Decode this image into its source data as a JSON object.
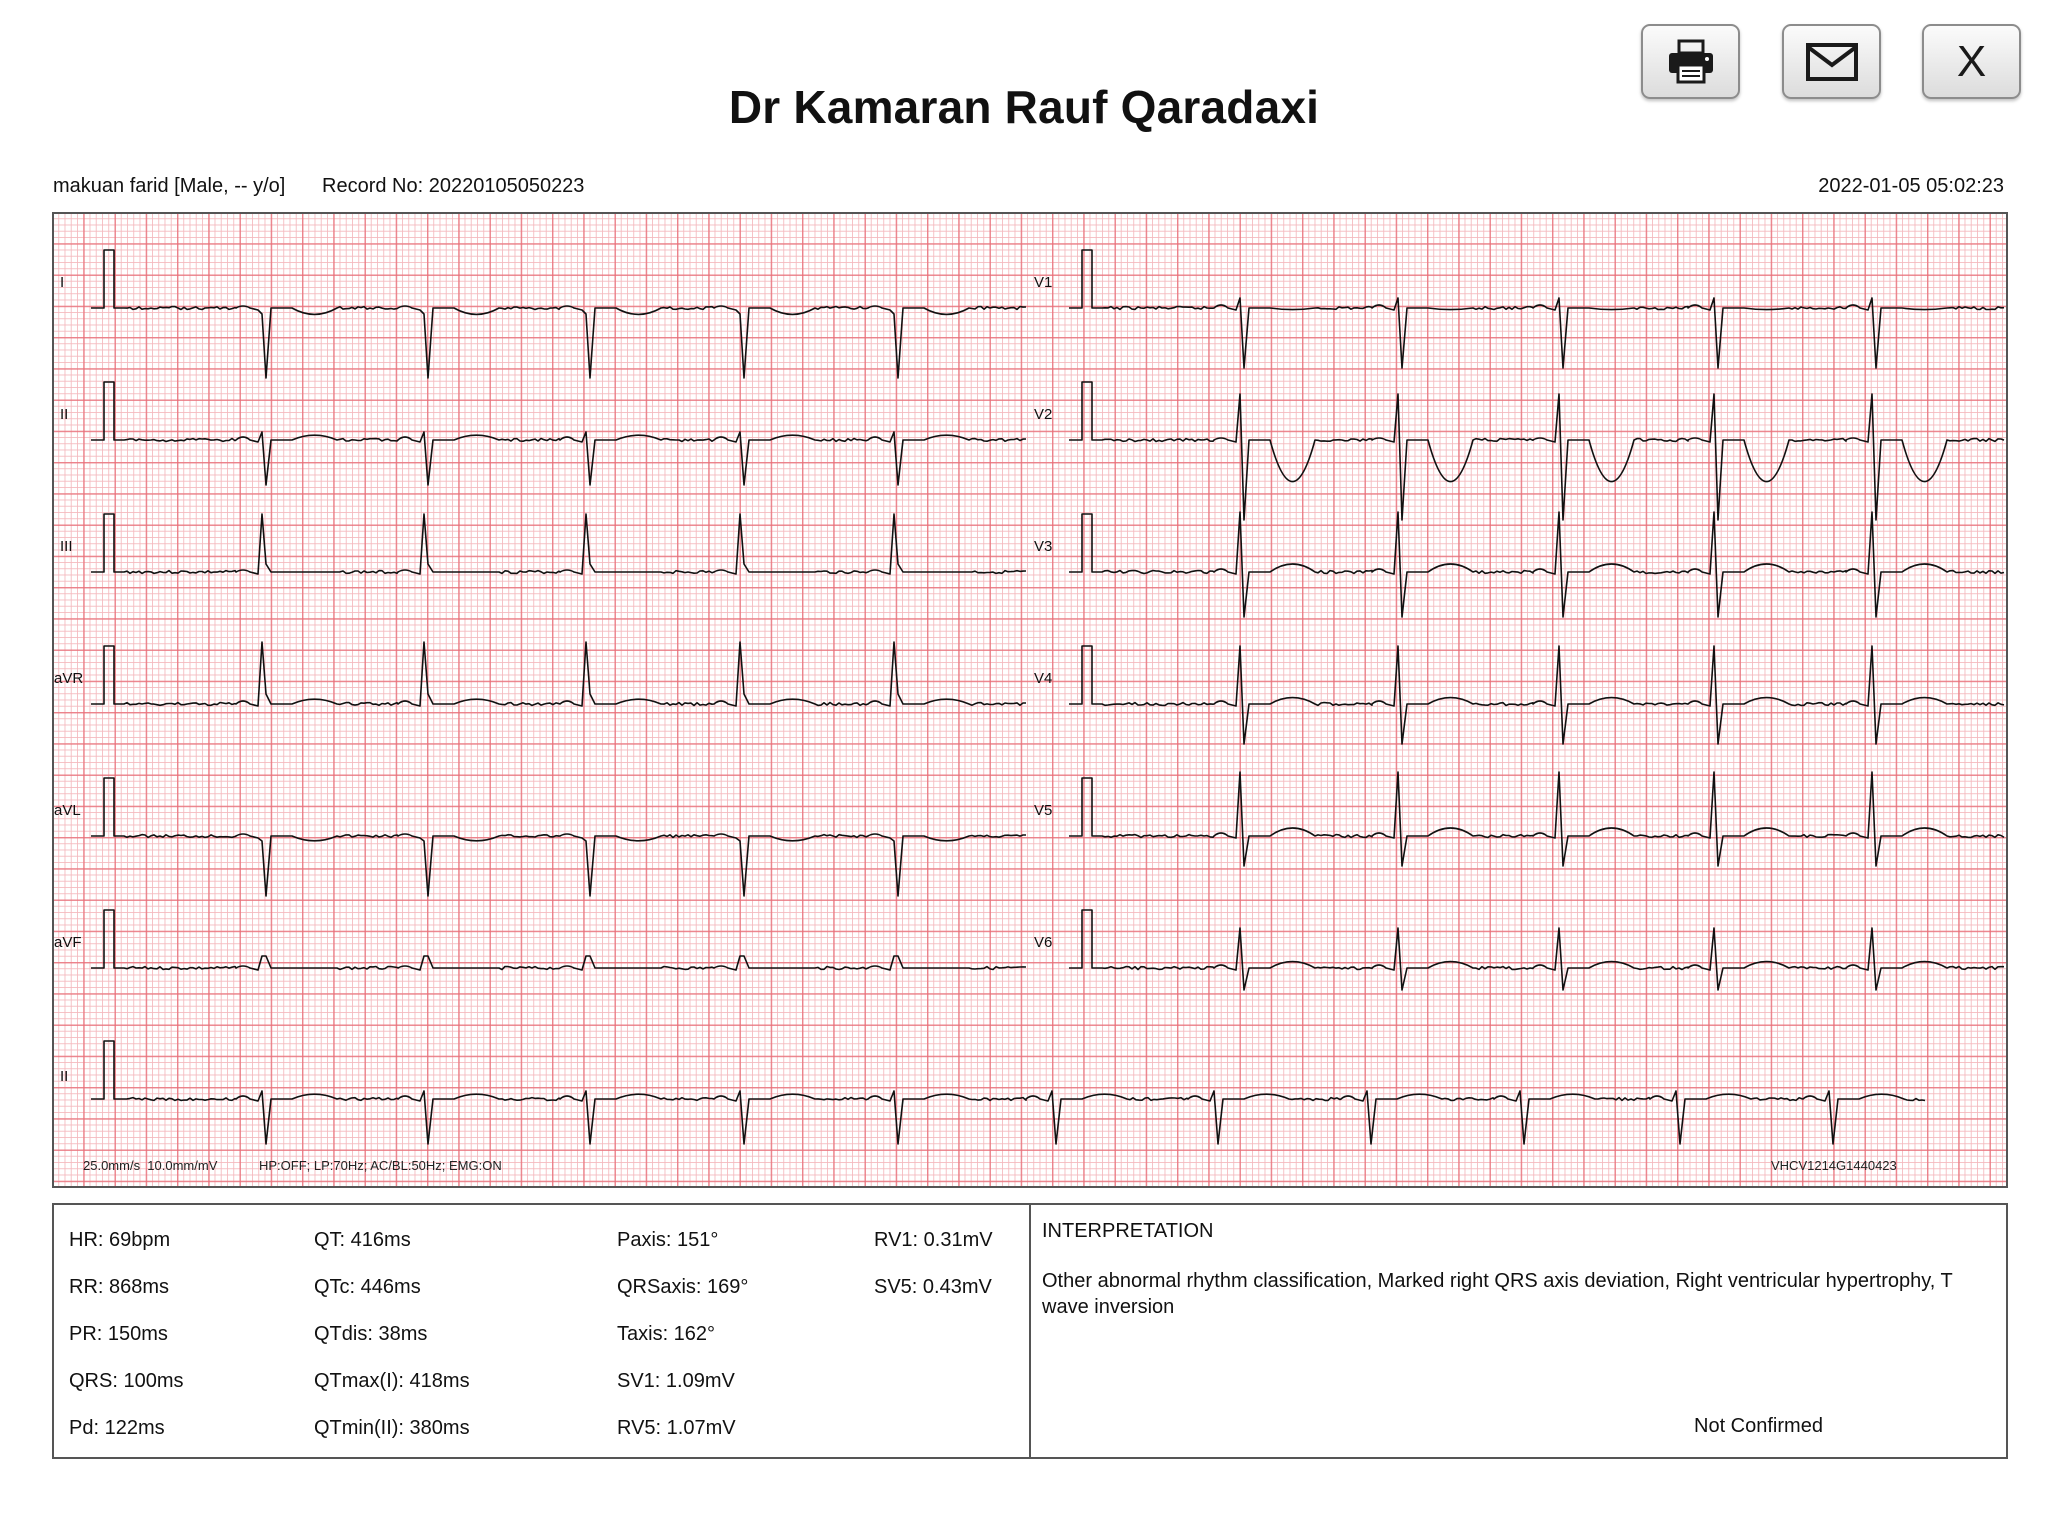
{
  "header": {
    "title": "Dr Kamaran Rauf Qaradaxi"
  },
  "toolbar": {
    "print_icon": "printer-icon",
    "email_icon": "envelope-icon",
    "close_label": "X"
  },
  "patient": {
    "name_info": "makuan farid [Male, -- y/o]",
    "record": "Record No: 20220105050223",
    "datetime": "2022-01-05 05:02:23"
  },
  "ecg": {
    "leads_left": [
      "I",
      "II",
      "III",
      "aVR",
      "aVL",
      "aVF"
    ],
    "leads_right": [
      "V1",
      "V2",
      "V3",
      "V4",
      "V5",
      "V6"
    ],
    "rhythm_lead": "II",
    "settings_speed": "25.0mm/s  10.0mm/mV",
    "settings_filters": "HP:OFF; LP:70Hz; AC/BL:50Hz; EMG:ON",
    "device_id": "VHCV1214G1440423",
    "grid_colors": {
      "major": "#e86e78",
      "minor": "#f4b9be",
      "trace": "#111111"
    }
  },
  "measurements": {
    "col1": [
      "HR: 69bpm",
      "RR: 868ms",
      "PR: 150ms",
      "QRS: 100ms",
      "Pd: 122ms"
    ],
    "col2": [
      "QT: 416ms",
      "QTc: 446ms",
      "QTdis: 38ms",
      "QTmax(I): 418ms",
      "QTmin(II): 380ms"
    ],
    "col3": [
      "Paxis: 151°",
      "QRSaxis: 169°",
      "Taxis: 162°",
      "SV1: 1.09mV",
      "RV5: 1.07mV"
    ],
    "col4": [
      "RV1: 0.31mV",
      "SV5: 0.43mV"
    ]
  },
  "interpretation": {
    "heading": "INTERPRETATION",
    "text": "Other abnormal rhythm classification, Marked right QRS axis deviation, Right ventricular hypertrophy, T wave inversion",
    "status": "Not Confirmed"
  }
}
